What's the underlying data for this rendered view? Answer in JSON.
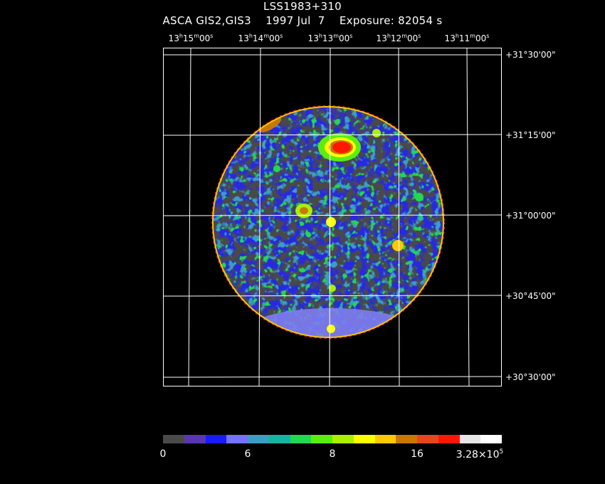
{
  "header": {
    "object_name": "LSS1983+310",
    "instrument_line": "ASCA GIS2,GIS3    1997 Jul  7    Exposure: 82054 s"
  },
  "ra_ticks": [
    {
      "h": "13",
      "m": "15",
      "s": "00"
    },
    {
      "h": "13",
      "m": "14",
      "s": "00"
    },
    {
      "h": "13",
      "m": "13",
      "s": "00"
    },
    {
      "h": "13",
      "m": "12",
      "s": "00"
    },
    {
      "h": "13",
      "m": "11",
      "s": "00"
    }
  ],
  "dec_ticks": [
    {
      "label": "+31°30'00\""
    },
    {
      "label": "+31°15'00\""
    },
    {
      "label": "+31°00'00\""
    },
    {
      "label": "+30°45'00\""
    },
    {
      "label": "+30°30'00\""
    }
  ],
  "colorbar": {
    "colors": [
      "#4a4a4a",
      "#5a36b4",
      "#1a1aff",
      "#7373ff",
      "#3c9cc8",
      "#16b4a0",
      "#22d850",
      "#5aee10",
      "#aaf000",
      "#ffff00",
      "#ffc800",
      "#c87800",
      "#e6461e",
      "#ff1800",
      "#e6e6e6",
      "#ffffff"
    ],
    "labels": [
      {
        "text": "0",
        "sup": ""
      },
      {
        "text": "6",
        "sup": ""
      },
      {
        "text": "8",
        "sup": ""
      },
      {
        "text": "16",
        "sup": ""
      },
      {
        "text": "3.28×10",
        "sup": "5"
      }
    ]
  }
}
